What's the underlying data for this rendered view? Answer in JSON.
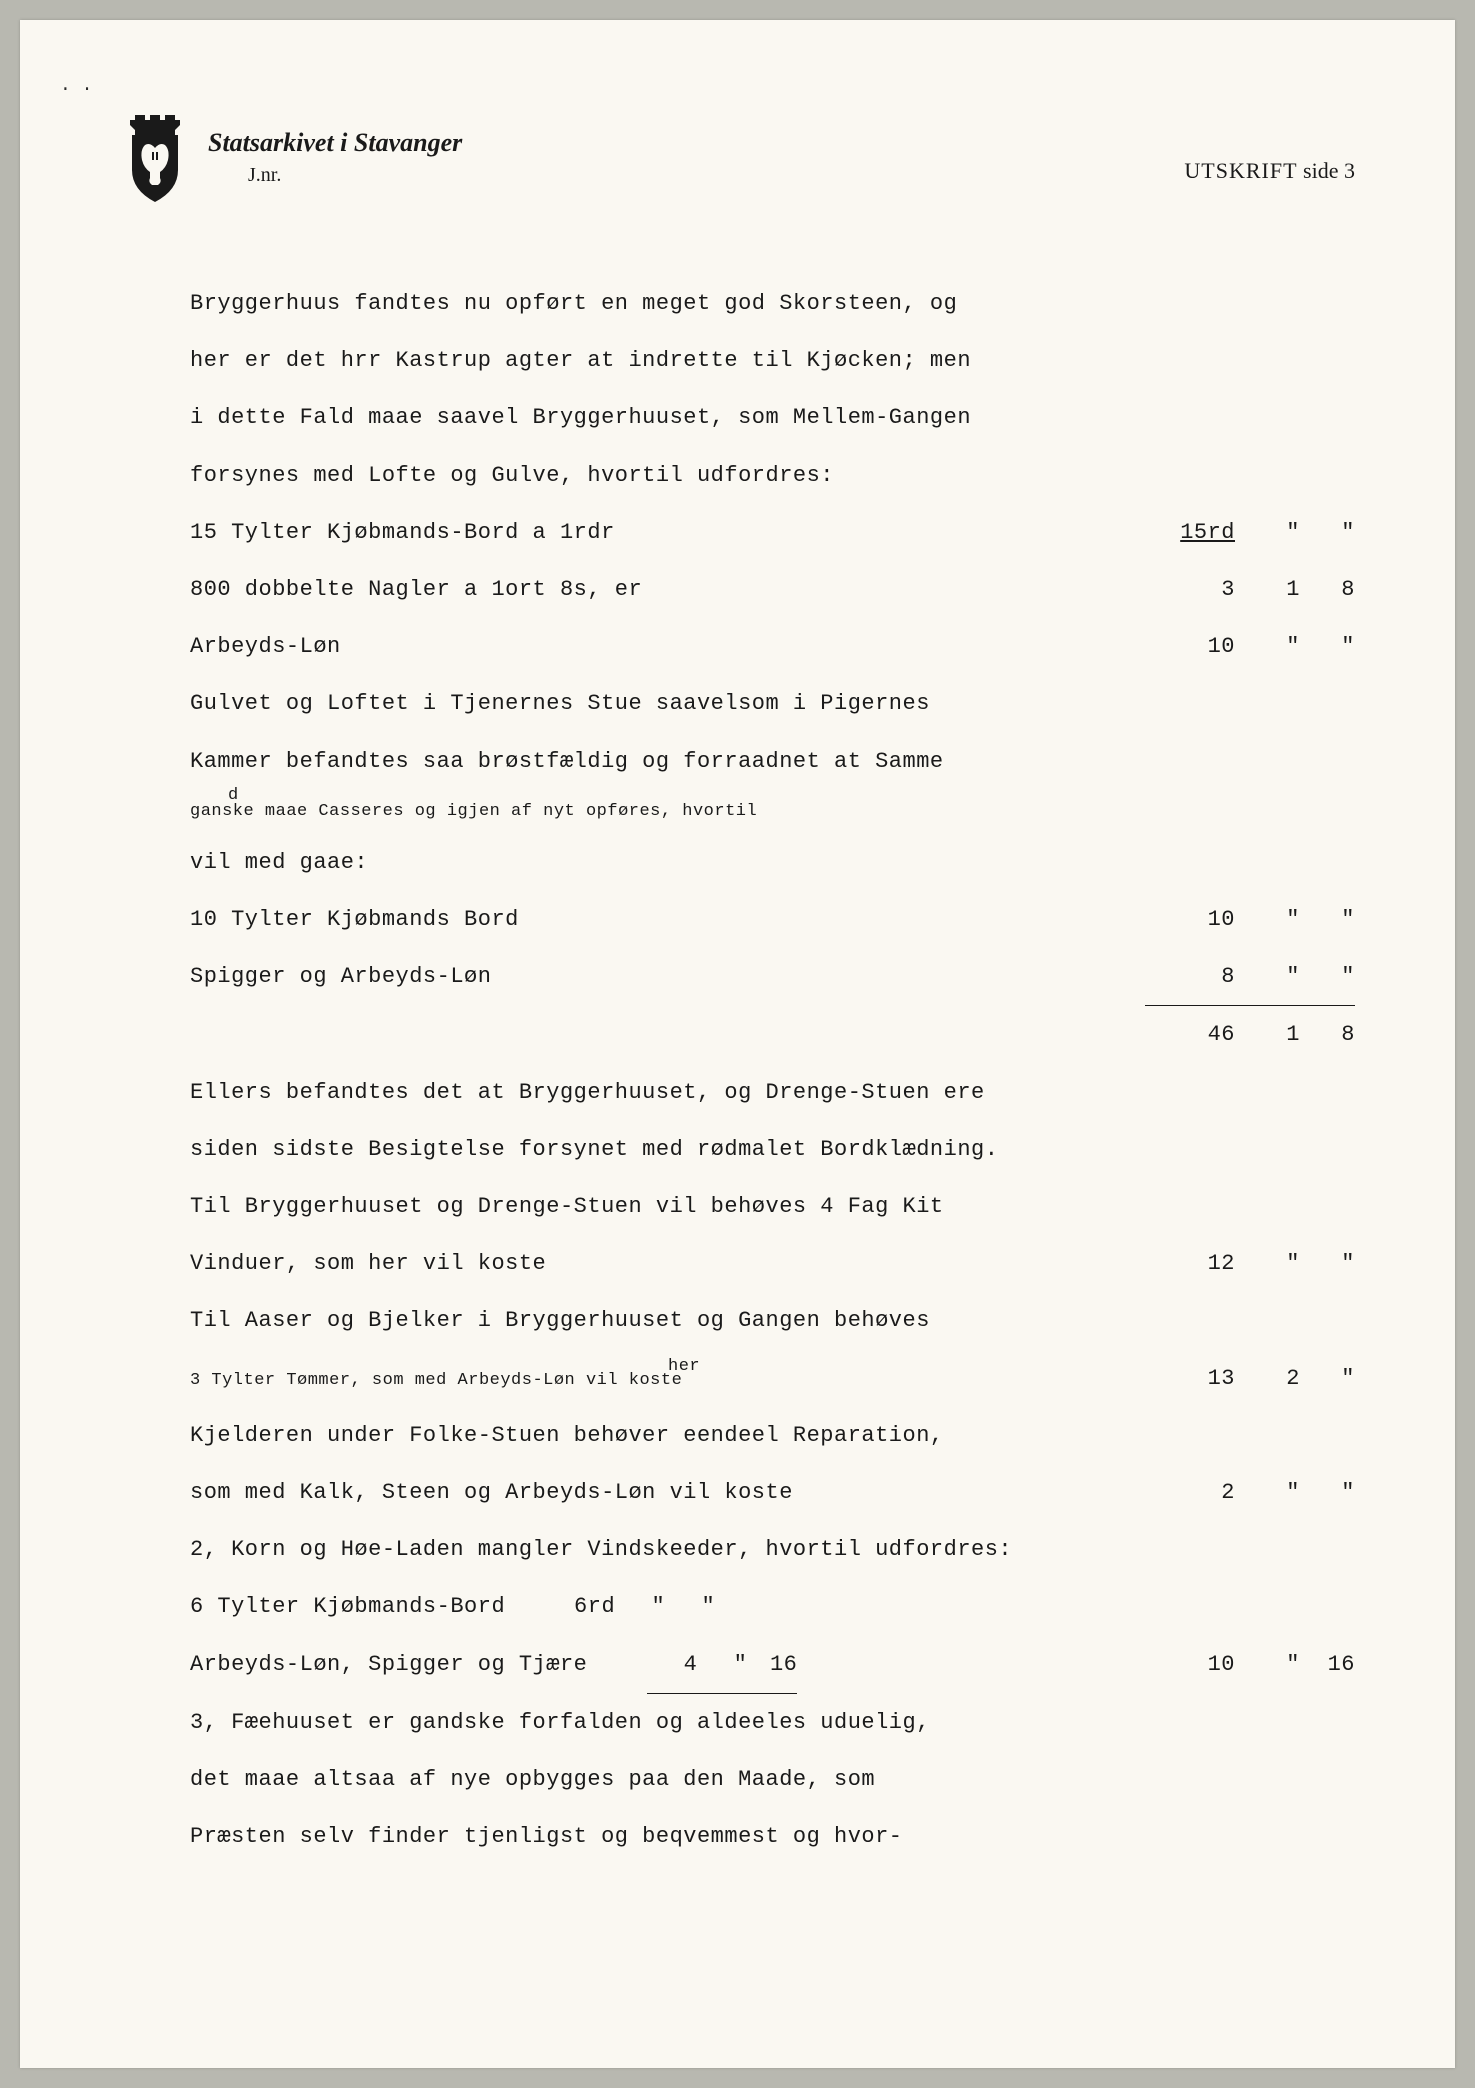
{
  "header": {
    "archive_title": "Statsarkivet i Stavanger",
    "jnr_label": "J.nr.",
    "utskrift_label": "UTSKRIFT",
    "side_label": "side",
    "page_number": "3"
  },
  "colors": {
    "page_bg": "#faf8f2",
    "text": "#1a1a1a",
    "outer_bg": "#b8b8b0"
  },
  "lines": [
    {
      "type": "text",
      "text": "Bryggerhuus fandtes nu opført en meget god Skorsteen, og"
    },
    {
      "type": "text",
      "text": "her er det hrr Kastrup agter at indrette til Kjøcken; men"
    },
    {
      "type": "text",
      "text": "i dette Fald maae saavel Bryggerhuuset, som Mellem-Gangen"
    },
    {
      "type": "text",
      "text": "forsynes med Lofte og Gulve, hvortil udfordres:"
    },
    {
      "type": "item",
      "text": "15 Tylter Kjøbmands-Bord a 1rdr",
      "c1": "15rd",
      "c2": "\"",
      "c3": "\"",
      "c1_underline": true
    },
    {
      "type": "item",
      "text": "800 dobbelte Nagler a 1ort 8s, er",
      "c1": "3",
      "c2": "1",
      "c3": "8"
    },
    {
      "type": "item",
      "text": "Arbeyds-Løn",
      "c1": "10",
      "c2": "\"",
      "c3": "\""
    },
    {
      "type": "text",
      "text": "Gulvet og Loftet i Tjenernes Stue saavelsom i Pigernes"
    },
    {
      "type": "text",
      "text": "Kammer befandtes saa brøstfældig og forraadnet at Samme"
    },
    {
      "type": "text_annot",
      "text": "ganske maae Casseres og igjen af nyt opføres, hvortil",
      "annot": "d",
      "annot_class": "annotation-d"
    },
    {
      "type": "text",
      "text": "vil med gaae:"
    },
    {
      "type": "item",
      "text": "10 Tylter Kjøbmands Bord",
      "c1": "10",
      "c2": "\"",
      "c3": "\""
    },
    {
      "type": "item",
      "text": "Spigger og Arbeyds-Løn",
      "c1": "8",
      "c2": "\"",
      "c3": "\"",
      "sum_line": true
    },
    {
      "type": "sum",
      "c1": "46",
      "c2": "1",
      "c3": "8"
    },
    {
      "type": "text",
      "text": "Ellers befandtes det at Bryggerhuuset, og Drenge-Stuen ere"
    },
    {
      "type": "text",
      "text": "siden sidste Besigtelse forsynet med rødmalet Bordklædning."
    },
    {
      "type": "text",
      "text": "Til Bryggerhuuset og Drenge-Stuen vil behøves 4 Fag Kit"
    },
    {
      "type": "item",
      "text": "Vinduer, som her vil koste",
      "c1": "12",
      "c2": "\"",
      "c3": "\""
    },
    {
      "type": "text",
      "text": "Til Aaser og Bjelker i Bryggerhuuset og Gangen behøves"
    },
    {
      "type": "item_annot",
      "text": "3 Tylter Tømmer, som med Arbeyds-Løn vil koste",
      "c1": "13",
      "c2": "2",
      "c3": "\"",
      "annot": "her",
      "annot_class": "annotation-her"
    },
    {
      "type": "text",
      "text": "Kjelderen under Folke-Stuen behøver eendeel Reparation,"
    },
    {
      "type": "item",
      "text": "som med Kalk, Steen og Arbeyds-Løn vil koste",
      "c1": "2",
      "c2": "\"",
      "c3": "\""
    },
    {
      "type": "text",
      "text": "2, Korn og Høe-Laden mangler Vindskeeder, hvortil udfordres:"
    },
    {
      "type": "inline",
      "text": "6 Tylter Kjøbmands-Bord",
      "i1": "6rd",
      "i2": "\"",
      "i3": "\""
    },
    {
      "type": "inline_item",
      "text": "Arbeyds-Løn, Spigger og Tjære",
      "i1": "4",
      "i2": "\"",
      "i3": "16",
      "c1": "10",
      "c2": "\"",
      "c3": "16",
      "inline_underline": true
    },
    {
      "type": "text",
      "text": "3, Fæehuuset er gandske forfalden og aldeeles uduelig,"
    },
    {
      "type": "text",
      "text": "det maae altsaa af nye opbygges paa den Maade, som"
    },
    {
      "type": "text",
      "text": "Præsten selv finder tjenligst og beqvemmest og hvor-"
    }
  ]
}
